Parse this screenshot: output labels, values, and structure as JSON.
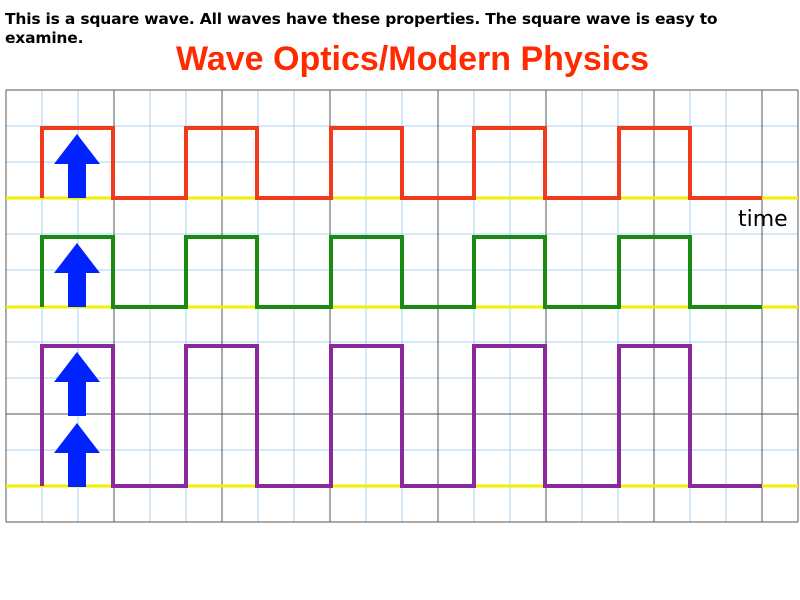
{
  "intro_text": "This is a square wave. All waves have these properties. The square wave is easy to examine.",
  "title": "Wave Optics/Modern Physics",
  "axis_label": "time",
  "colors": {
    "title": "#ff2a00",
    "grid_major": "#555555",
    "grid_minor": "#a9d4f5",
    "baseline": "#f2f000",
    "arrow": "#0022ff"
  },
  "waves": [
    {
      "name": "red-wave",
      "color": "#f03a1a",
      "amplitude": 1,
      "arrows": 1
    },
    {
      "name": "green-wave",
      "color": "#1a8a10",
      "amplitude": 1,
      "arrows": 1
    },
    {
      "name": "purple-wave",
      "color": "#8a2a9a",
      "amplitude": 2,
      "arrows": 2
    }
  ]
}
